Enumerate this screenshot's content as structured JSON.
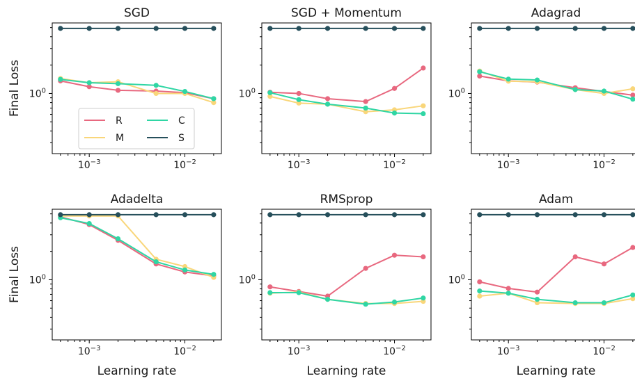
{
  "colors": {
    "R": "#e8687f",
    "M": "#f9d67a",
    "C": "#2fd6a4",
    "S": "#264f5b"
  },
  "legend": {
    "placement": "lower-left",
    "subplot": 0,
    "columns": 2
  },
  "chart_data": [
    {
      "type": "line",
      "title": "SGD",
      "xscale": "log",
      "yscale": "log",
      "xlabel": "",
      "ylabel": "Final Loss",
      "x": [
        0.0005,
        0.001,
        0.002,
        0.005,
        0.01,
        0.02
      ],
      "xticks": [
        "10^-3",
        "10^-2"
      ],
      "yticks": [
        "10^0"
      ],
      "ylim": [
        0.23,
        5.6
      ],
      "series": [
        {
          "name": "R",
          "values": [
            1.36,
            1.18,
            1.08,
            1.06,
            1.02,
            0.88
          ]
        },
        {
          "name": "M",
          "values": [
            1.44,
            1.3,
            1.33,
            1.0,
            1.0,
            0.8
          ]
        },
        {
          "name": "C",
          "values": [
            1.41,
            1.3,
            1.27,
            1.22,
            1.05,
            0.88
          ]
        },
        {
          "name": "S",
          "values": [
            4.9,
            4.9,
            4.9,
            4.9,
            4.9,
            4.9
          ]
        }
      ]
    },
    {
      "type": "line",
      "title": "SGD + Momentum",
      "xscale": "log",
      "yscale": "log",
      "xlabel": "",
      "ylabel": "",
      "x": [
        0.0005,
        0.001,
        0.002,
        0.005,
        0.01,
        0.02
      ],
      "xticks": [
        "10^-3",
        "10^-2"
      ],
      "yticks": [
        "10^0"
      ],
      "ylim": [
        0.23,
        5.6
      ],
      "series": [
        {
          "name": "R",
          "values": [
            1.03,
            1.0,
            0.88,
            0.82,
            1.13,
            1.86
          ]
        },
        {
          "name": "M",
          "values": [
            0.93,
            0.79,
            0.77,
            0.64,
            0.67,
            0.74
          ]
        },
        {
          "name": "C",
          "values": [
            1.02,
            0.86,
            0.77,
            0.7,
            0.62,
            0.61
          ]
        },
        {
          "name": "S",
          "values": [
            4.9,
            4.9,
            4.9,
            4.9,
            4.9,
            4.9
          ]
        }
      ]
    },
    {
      "type": "line",
      "title": "Adagrad",
      "xscale": "log",
      "yscale": "log",
      "xlabel": "",
      "ylabel": "",
      "x": [
        0.0005,
        0.001,
        0.002,
        0.005,
        0.01,
        0.02
      ],
      "xticks": [
        "10^-3",
        "10^-2"
      ],
      "yticks": [
        "10^0"
      ],
      "ylim": [
        0.23,
        5.6
      ],
      "series": [
        {
          "name": "R",
          "values": [
            1.53,
            1.36,
            1.32,
            1.15,
            1.05,
            0.96
          ]
        },
        {
          "name": "M",
          "values": [
            1.73,
            1.35,
            1.33,
            1.1,
            1.0,
            1.12
          ]
        },
        {
          "name": "C",
          "values": [
            1.7,
            1.42,
            1.39,
            1.1,
            1.06,
            0.87
          ]
        },
        {
          "name": "S",
          "values": [
            4.9,
            4.9,
            4.9,
            4.9,
            4.9,
            4.9
          ]
        }
      ]
    },
    {
      "type": "line",
      "title": "Adadelta",
      "xscale": "log",
      "yscale": "log",
      "xlabel": "Learning rate",
      "ylabel": "Final Loss",
      "x": [
        0.0005,
        0.001,
        0.002,
        0.005,
        0.01,
        0.02
      ],
      "xticks": [
        "10^-3",
        "10^-2"
      ],
      "yticks": [
        "10^0"
      ],
      "ylim": [
        0.23,
        5.6
      ],
      "series": [
        {
          "name": "R",
          "values": [
            4.65,
            3.85,
            2.62,
            1.47,
            1.21,
            1.1
          ]
        },
        {
          "name": "M",
          "values": [
            4.75,
            4.75,
            4.75,
            1.65,
            1.38,
            1.06
          ]
        },
        {
          "name": "C",
          "values": [
            4.55,
            3.95,
            2.72,
            1.55,
            1.27,
            1.14
          ]
        },
        {
          "name": "S",
          "values": [
            4.9,
            4.9,
            4.9,
            4.9,
            4.9,
            4.9
          ]
        }
      ]
    },
    {
      "type": "line",
      "title": "RMSprop",
      "xscale": "log",
      "yscale": "log",
      "xlabel": "Learning rate",
      "ylabel": "",
      "x": [
        0.0005,
        0.001,
        0.002,
        0.005,
        0.01,
        0.02
      ],
      "xticks": [
        "10^-3",
        "10^-2"
      ],
      "yticks": [
        "10^0"
      ],
      "ylim": [
        0.23,
        5.6
      ],
      "series": [
        {
          "name": "R",
          "values": [
            0.84,
            0.75,
            0.67,
            1.32,
            1.82,
            1.75
          ]
        },
        {
          "name": "M",
          "values": [
            0.72,
            0.74,
            0.62,
            0.56,
            0.56,
            0.59
          ]
        },
        {
          "name": "C",
          "values": [
            0.73,
            0.73,
            0.62,
            0.55,
            0.58,
            0.64
          ]
        },
        {
          "name": "S",
          "values": [
            4.9,
            4.9,
            4.9,
            4.9,
            4.9,
            4.9
          ]
        }
      ]
    },
    {
      "type": "line",
      "title": "Adam",
      "xscale": "log",
      "yscale": "log",
      "xlabel": "Learning rate",
      "ylabel": "",
      "x": [
        0.0005,
        0.001,
        0.002,
        0.005,
        0.01,
        0.02
      ],
      "xticks": [
        "10^-3",
        "10^-2"
      ],
      "yticks": [
        "10^0"
      ],
      "ylim": [
        0.23,
        5.6
      ],
      "series": [
        {
          "name": "R",
          "values": [
            0.95,
            0.81,
            0.74,
            1.75,
            1.47,
            2.2
          ]
        },
        {
          "name": "M",
          "values": [
            0.67,
            0.72,
            0.57,
            0.56,
            0.56,
            0.63
          ]
        },
        {
          "name": "C",
          "values": [
            0.76,
            0.72,
            0.62,
            0.57,
            0.57,
            0.69
          ]
        },
        {
          "name": "S",
          "values": [
            4.9,
            4.9,
            4.9,
            4.9,
            4.9,
            4.9
          ]
        }
      ]
    }
  ]
}
